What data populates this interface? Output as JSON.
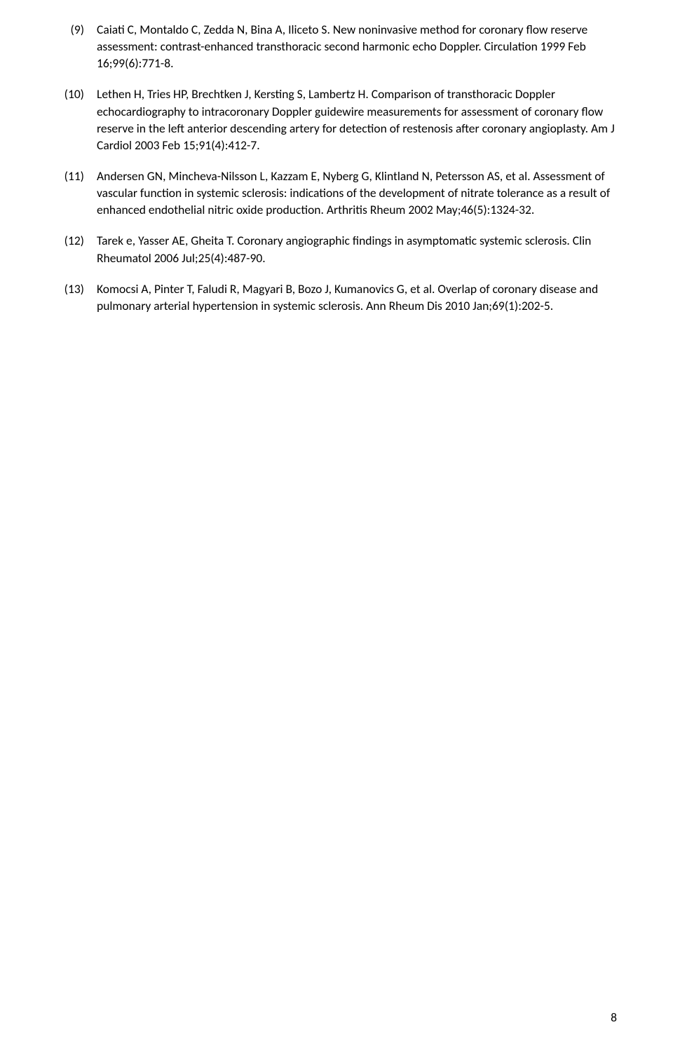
{
  "references": [
    {
      "number": "(9)",
      "text": "Caiati C, Montaldo C, Zedda N, Bina A, Iliceto S. New noninvasive method for coronary flow reserve assessment: contrast-enhanced transthoracic second harmonic echo Doppler. Circulation 1999 Feb 16;99(6):771-8."
    },
    {
      "number": "(10)",
      "text": "Lethen H, Tries HP, Brechtken J, Kersting S, Lambertz H. Comparison of transthoracic Doppler echocardiography to intracoronary Doppler guidewire measurements for assessment of coronary flow reserve in the left anterior descending artery for detection of restenosis after coronary angioplasty. Am J Cardiol 2003 Feb 15;91(4):412-7."
    },
    {
      "number": "(11)",
      "text": "Andersen GN, Mincheva-Nilsson L, Kazzam E, Nyberg G, Klintland N, Petersson AS, et al. Assessment of vascular function in systemic sclerosis: indications of the development of nitrate tolerance as a result of enhanced endothelial nitric oxide production. Arthritis Rheum 2002 May;46(5):1324-32."
    },
    {
      "number": "(12)",
      "text": "Tarek e, Yasser AE, Gheita T. Coronary angiographic findings in asymptomatic systemic sclerosis. Clin Rheumatol 2006 Jul;25(4):487-90."
    },
    {
      "number": "(13)",
      "text": "Komocsi A, Pinter T, Faludi R, Magyari B, Bozo J, Kumanovics G, et al. Overlap of coronary disease and pulmonary arterial hypertension in systemic sclerosis. Ann Rheum Dis 2010 Jan;69(1):202-5."
    }
  ],
  "pageNumber": "8"
}
